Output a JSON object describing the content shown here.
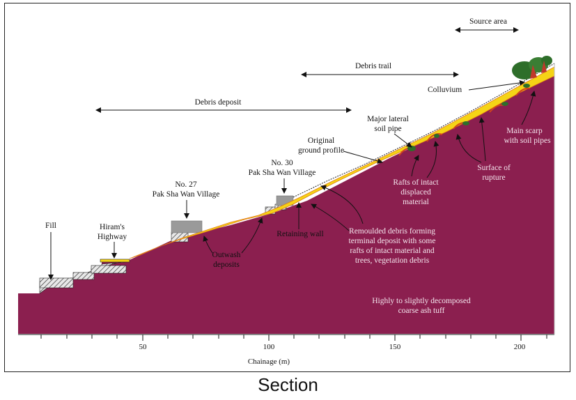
{
  "labels": {
    "source_area": "Source area",
    "debris_trail": "Debris trail",
    "debris_deposit": "Debris deposit",
    "colluvium": "Colluvium",
    "major_lateral_1": "Major lateral",
    "major_lateral_2": "soil pipe",
    "original_ground_1": "Original",
    "original_ground_2": "ground profile",
    "no30_1": "No. 30",
    "no30_2": "Pak Sha Wan Village",
    "no27_1": "No. 27",
    "no27_2": "Pak Sha Wan Village",
    "fill": "Fill",
    "hirams_1": "Hiram's",
    "hirams_2": "Highway",
    "outwash_1": "Outwash",
    "outwash_2": "deposits",
    "retaining_wall": "Retaining wall",
    "remoulded_1": "Remoulded debris forming",
    "remoulded_2": "terminal deposit with some",
    "remoulded_3": "rafts of intact material and",
    "remoulded_4": "trees, vegetation debris",
    "rafts_1": "Rafts of intact",
    "rafts_2": "displaced",
    "rafts_3": "material",
    "surface_1": "Surface of",
    "surface_2": "rupture",
    "main_scarp_1": "Main scarp",
    "main_scarp_2": "with soil pipes",
    "tuff_1": "Highly to slightly decomposed",
    "tuff_2": "coarse ash tuff"
  },
  "axis": {
    "title": "Chainage (m)",
    "ticks": [
      "50",
      "100",
      "150",
      "200"
    ]
  },
  "caption": "Section",
  "colors": {
    "bedrock": "#8b1f4f",
    "debris": "#f5d416",
    "debris_edge": "#e07a16",
    "fill_hatch": "#555555",
    "building": "#9a9a9a",
    "tree": "#2e6e2a"
  }
}
